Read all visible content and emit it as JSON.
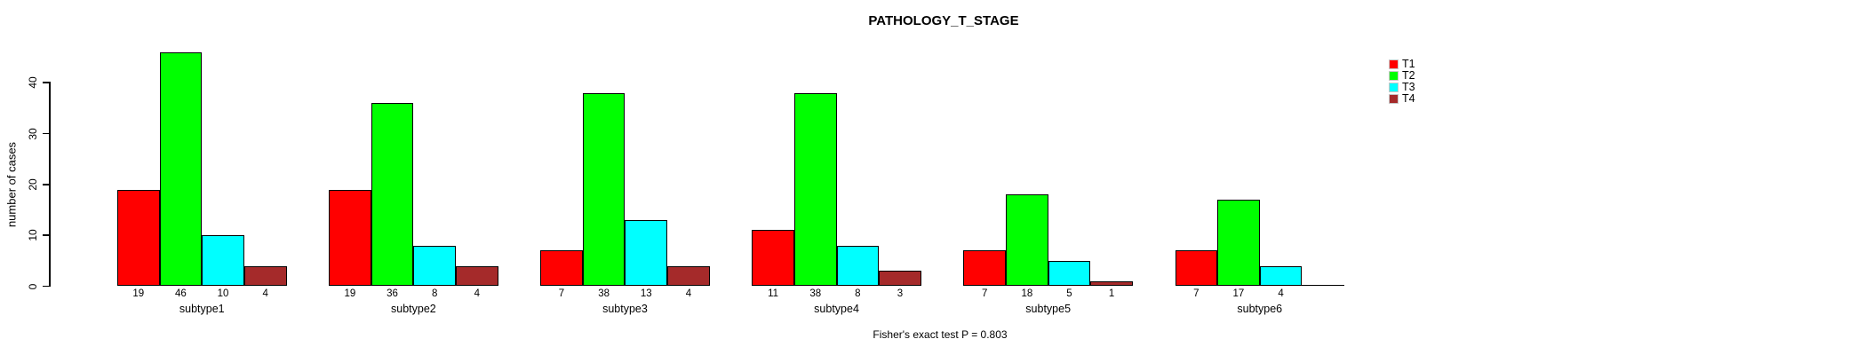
{
  "chart_data": {
    "type": "bar",
    "title": "PATHOLOGY_T_STAGE",
    "ylabel": "number of cases",
    "xlabel": "",
    "footnote": "Fisher's exact test P = 0.803",
    "ylim": [
      0,
      40
    ],
    "yticks": [
      0,
      10,
      20,
      30,
      40
    ],
    "grid": false,
    "legend_position": "top-right",
    "categories": [
      "subtype1",
      "subtype2",
      "subtype3",
      "subtype4",
      "subtype5",
      "subtype6"
    ],
    "series": [
      {
        "name": "T1",
        "color": "#ff0000",
        "values": [
          19,
          19,
          7,
          11,
          7,
          7
        ]
      },
      {
        "name": "T2",
        "color": "#00ff00",
        "values": [
          46,
          36,
          38,
          38,
          18,
          17
        ]
      },
      {
        "name": "T3",
        "color": "#00ffff",
        "values": [
          10,
          8,
          13,
          8,
          5,
          4
        ]
      },
      {
        "name": "T4",
        "color": "#a52a2a",
        "values": [
          4,
          4,
          4,
          3,
          1,
          0
        ]
      }
    ],
    "bar_value_labels": [
      [
        "19",
        "46",
        "10",
        "4"
      ],
      [
        "19",
        "36",
        "8",
        "4"
      ],
      [
        "7",
        "38",
        "13",
        "4"
      ],
      [
        "11",
        "38",
        "8",
        "3"
      ],
      [
        "7",
        "18",
        "5",
        "1"
      ],
      [
        "7",
        "17",
        "4",
        ""
      ]
    ]
  }
}
